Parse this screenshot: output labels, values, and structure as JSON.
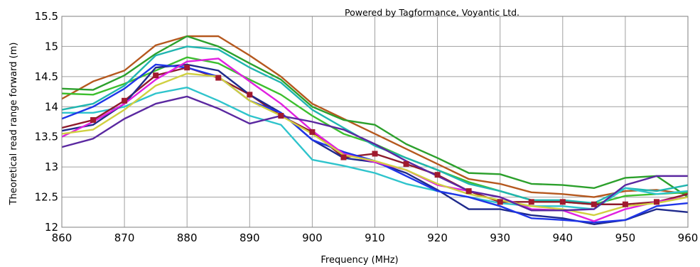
{
  "credit": "Powered by Tagformance, Voyantic Ltd.",
  "chart_data": {
    "type": "line",
    "xlabel": "Frequency (MHz)",
    "ylabel": "Theoretical read range forward (m)",
    "xlim": [
      860,
      960
    ],
    "ylim": [
      12,
      15.5
    ],
    "xticks": [
      860,
      870,
      880,
      890,
      900,
      910,
      920,
      930,
      940,
      950,
      960
    ],
    "yticks": [
      12,
      12.5,
      13,
      13.5,
      14,
      14.5,
      15,
      15.5
    ],
    "ytick_labels": [
      "12",
      "12.5",
      "13",
      "13.5",
      "14",
      "14.5",
      "15",
      "15.5"
    ],
    "grid": true,
    "x": [
      860,
      865,
      870,
      875,
      880,
      885,
      890,
      895,
      900,
      905,
      910,
      915,
      920,
      925,
      930,
      935,
      940,
      945,
      950,
      955,
      960
    ],
    "series": [
      {
        "color": "#b5581e",
        "values": [
          14.13,
          14.42,
          14.6,
          15.02,
          15.17,
          15.17,
          14.85,
          14.5,
          14.05,
          13.8,
          13.55,
          13.3,
          13.05,
          12.8,
          12.72,
          12.58,
          12.55,
          12.5,
          12.6,
          12.62,
          12.55
        ]
      },
      {
        "color": "#2ca02c",
        "values": [
          14.3,
          14.28,
          14.52,
          14.88,
          15.17,
          15.0,
          14.72,
          14.45,
          14.0,
          13.78,
          13.7,
          13.38,
          13.15,
          12.9,
          12.88,
          12.72,
          12.7,
          12.65,
          12.82,
          12.85,
          12.5
        ]
      },
      {
        "color": "#3cbf2e",
        "values": [
          14.22,
          14.2,
          14.38,
          14.6,
          14.82,
          14.72,
          14.45,
          14.2,
          13.85,
          13.55,
          13.38,
          13.15,
          12.95,
          12.75,
          12.6,
          12.45,
          12.42,
          12.38,
          12.52,
          12.55,
          12.58
        ]
      },
      {
        "color": "#20b5b0",
        "values": [
          13.95,
          14.05,
          14.35,
          14.85,
          15.0,
          14.95,
          14.65,
          14.4,
          13.95,
          13.65,
          13.35,
          13.15,
          12.95,
          12.72,
          12.6,
          12.45,
          12.45,
          12.4,
          12.65,
          12.6,
          12.7
        ]
      },
      {
        "color": "#2fc4cc",
        "values": [
          13.9,
          13.9,
          14.0,
          14.22,
          14.32,
          14.1,
          13.85,
          13.7,
          13.12,
          13.02,
          12.9,
          12.72,
          12.6,
          12.5,
          12.4,
          12.35,
          12.35,
          12.3,
          12.65,
          12.55,
          12.6
        ]
      },
      {
        "color": "#8e1b2c",
        "values": [
          13.65,
          13.78,
          14.1,
          14.52,
          14.65,
          14.48,
          14.2,
          13.85,
          13.58,
          13.16,
          13.22,
          13.05,
          12.87,
          12.6,
          12.42,
          12.42,
          12.42,
          12.38,
          12.38,
          12.42,
          12.55
        ]
      },
      {
        "color": "#1f2a8c",
        "values": [
          13.6,
          13.7,
          14.05,
          14.65,
          14.7,
          14.6,
          14.2,
          13.9,
          13.45,
          13.15,
          13.08,
          12.9,
          12.62,
          12.3,
          12.3,
          12.2,
          12.15,
          12.05,
          12.12,
          12.3,
          12.25
        ]
      },
      {
        "color": "#1f35e8",
        "values": [
          13.8,
          14.0,
          14.3,
          14.7,
          14.65,
          14.5,
          14.1,
          13.9,
          13.45,
          13.25,
          13.1,
          12.85,
          12.6,
          12.5,
          12.35,
          12.15,
          12.12,
          12.08,
          12.12,
          12.35,
          12.4
        ]
      },
      {
        "color": "#e020e0",
        "values": [
          13.5,
          13.75,
          14.05,
          14.45,
          14.75,
          14.8,
          14.42,
          14.05,
          13.6,
          13.22,
          13.08,
          12.95,
          12.7,
          12.6,
          12.5,
          12.3,
          12.28,
          12.1,
          12.3,
          12.42,
          12.5
        ]
      },
      {
        "color": "#d0d040",
        "values": [
          13.55,
          13.62,
          13.95,
          14.35,
          14.55,
          14.5,
          14.1,
          13.85,
          13.55,
          13.2,
          13.1,
          12.95,
          12.72,
          12.55,
          12.45,
          12.35,
          12.3,
          12.2,
          12.35,
          12.4,
          12.5
        ]
      },
      {
        "color": "#5a28a0",
        "values": [
          13.33,
          13.47,
          13.8,
          14.05,
          14.17,
          13.97,
          13.72,
          13.85,
          13.75,
          13.62,
          13.38,
          13.1,
          12.85,
          12.6,
          12.5,
          12.28,
          12.28,
          12.3,
          12.7,
          12.85,
          12.85
        ]
      }
    ],
    "markers": {
      "series_index": 5,
      "shape": "square"
    }
  }
}
